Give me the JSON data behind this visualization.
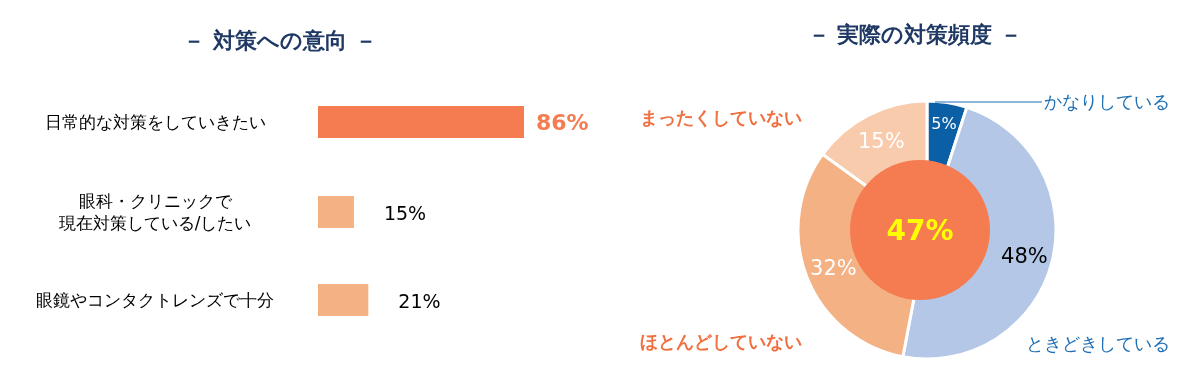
{
  "chart_data": [
    {
      "type": "bar",
      "orientation": "horizontal",
      "title": "－ 対策への意向 －",
      "categories": [
        "日常的な対策をしていきたい",
        "眼科・クリニックで現在対策している/したい",
        "眼鏡やコンタクトレンズで十分"
      ],
      "values": [
        86,
        15,
        21
      ],
      "colors": [
        "#f47c50",
        "#f4b183",
        "#f4b183"
      ],
      "value_labels": [
        "86%",
        "15%",
        "21%"
      ]
    },
    {
      "type": "pie",
      "title": "－ 実際の対策頻度 －",
      "categories": [
        "かなりしている",
        "ときどきしている",
        "ほとんどしていない",
        "まったくしていない"
      ],
      "values": [
        5,
        48,
        32,
        15
      ],
      "value_labels": [
        "5%",
        "48%",
        "32%",
        "15%"
      ],
      "colors": [
        "#0b5fa5",
        "#b4c7e7",
        "#f4b183",
        "#f8cbad"
      ],
      "annotations": [
        "47%"
      ]
    }
  ]
}
